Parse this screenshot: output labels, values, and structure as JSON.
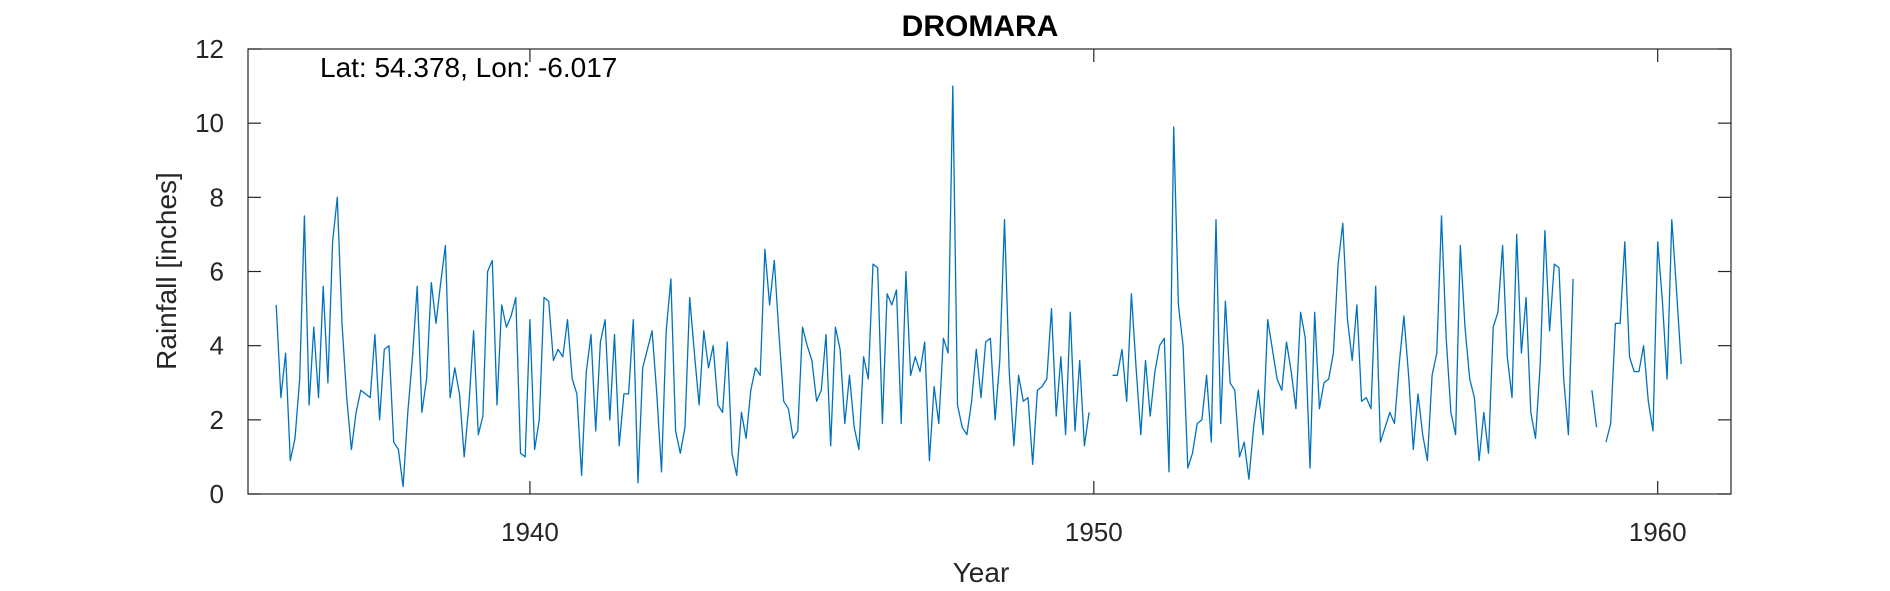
{
  "chart_data": {
    "type": "line",
    "title": "DROMARA",
    "annotation": "Lat: 54.378, Lon: -6.017",
    "xlabel": "Year",
    "ylabel": "Rainfall [inches]",
    "xlim": [
      1935.0,
      1961.3
    ],
    "ylim": [
      0,
      12
    ],
    "xticks": [
      1940,
      1950,
      1960
    ],
    "yticks": [
      0,
      2,
      4,
      6,
      8,
      10,
      12
    ],
    "grid": false,
    "line_color": "#0072BD",
    "series": [
      {
        "start_year": 1935.5,
        "step_months": 1,
        "values": [
          5.1,
          2.6,
          3.8,
          0.9,
          1.5,
          3.1,
          7.5,
          2.4,
          4.5,
          2.6,
          5.6,
          3.0,
          6.8,
          8.0,
          4.6,
          2.6,
          1.2,
          2.2,
          2.8,
          2.7,
          2.6,
          4.3,
          2.0,
          3.9,
          4.0,
          1.4,
          1.2,
          0.2,
          2.2,
          3.7,
          5.6,
          2.2,
          3.1,
          5.7,
          4.6,
          5.7,
          6.7,
          2.6,
          3.4,
          2.7,
          1.0,
          2.4,
          4.4,
          1.6,
          2.1,
          6.0,
          6.3,
          2.4,
          5.1,
          4.5,
          4.8,
          5.3,
          1.1,
          1.0,
          4.7,
          1.2,
          2.0,
          5.3,
          5.2,
          3.6,
          3.9,
          3.7,
          4.7,
          3.1,
          2.7,
          0.5,
          3.3,
          4.3,
          1.7,
          4.1,
          4.7,
          2.0,
          4.3,
          1.3,
          2.7,
          2.7,
          4.7,
          0.3,
          3.4,
          3.9,
          4.4,
          2.7,
          0.6,
          4.4,
          5.8,
          1.7,
          1.1,
          1.8,
          5.3,
          3.8,
          2.4,
          4.4,
          3.4,
          4.0,
          2.4,
          2.2,
          4.1,
          1.1,
          0.5,
          2.2,
          1.5,
          2.8,
          3.4,
          3.2,
          6.6,
          5.1,
          6.3,
          4.3,
          2.5,
          2.3,
          1.5,
          1.7,
          4.5,
          4.0,
          3.6,
          2.5,
          2.8,
          4.3,
          1.3,
          4.5,
          3.9,
          1.9,
          3.2,
          1.8,
          1.2,
          3.7,
          3.1,
          6.2,
          6.1,
          1.9,
          5.4,
          5.1,
          5.5,
          1.9,
          6.0,
          3.2,
          3.7,
          3.3,
          4.1,
          0.9,
          2.9,
          1.9,
          4.2,
          3.8,
          11.0,
          2.4,
          1.8,
          1.6,
          2.5,
          3.9,
          2.6,
          4.1,
          4.2,
          2.0,
          3.6,
          7.4,
          3.3,
          1.3,
          3.2,
          2.5,
          2.6,
          0.8,
          2.8,
          2.9,
          3.1,
          5.0,
          2.1,
          3.7,
          1.6,
          4.9,
          1.7,
          3.6,
          1.3,
          2.2
        ]
      },
      {
        "start_year": 1950.333,
        "step_months": 1,
        "values": [
          3.2,
          3.2,
          3.9,
          2.5,
          5.4,
          3.4,
          1.6,
          3.6,
          2.1,
          3.3,
          4.0,
          4.2,
          0.6,
          9.9,
          5.1,
          4.0,
          0.7,
          1.1,
          1.9,
          2.0,
          3.2,
          1.4,
          7.4,
          1.9,
          5.2,
          3.0,
          2.8,
          1.0,
          1.4,
          0.4,
          1.8,
          2.8,
          1.6,
          4.7,
          3.9,
          3.1,
          2.8,
          4.1,
          3.3,
          2.3,
          4.9,
          4.2,
          0.7,
          4.9,
          2.3,
          3.0,
          3.1,
          3.8,
          6.2,
          7.3,
          4.7,
          3.6,
          5.1,
          2.5,
          2.6,
          2.3,
          5.6,
          1.4,
          1.8,
          2.2,
          1.9,
          3.5,
          4.8,
          3.2,
          1.2,
          2.7,
          1.6,
          0.9,
          3.2,
          3.8,
          7.5,
          4.2,
          2.2,
          1.6,
          6.7,
          4.5,
          3.1,
          2.6,
          0.9,
          2.2,
          1.1,
          4.5,
          4.9,
          6.7,
          3.7,
          2.6,
          7.0,
          3.8,
          5.3,
          2.2,
          1.5,
          3.5,
          7.1,
          4.4,
          6.2,
          6.1,
          3.1,
          1.6,
          5.8
        ]
      },
      {
        "start_year": 1958.833,
        "step_months": 1,
        "values": [
          2.8,
          1.8
        ]
      },
      {
        "start_year": 1959.083,
        "step_months": 1,
        "values": [
          1.4,
          1.9,
          4.6,
          4.6,
          6.8,
          3.7,
          3.3,
          3.3,
          4.0,
          2.5,
          1.7,
          6.8,
          5.2,
          3.1,
          7.4,
          5.5,
          3.5
        ]
      }
    ]
  }
}
